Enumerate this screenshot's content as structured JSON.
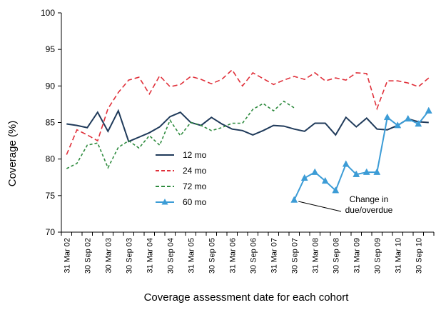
{
  "chart_data": {
    "type": "line",
    "xlabel": "Coverage assessment date for each cohort",
    "ylabel": "Coverage (%)",
    "ylim": [
      70,
      100
    ],
    "yticks": [
      70,
      75,
      80,
      85,
      90,
      95,
      100
    ],
    "grid": false,
    "legend_position": "center",
    "x_points": [
      "Mar 02",
      "Jun 02",
      "Sep 02",
      "Dec 02",
      "Mar 03",
      "Jun 03",
      "Sep 03",
      "Dec 03",
      "Mar 04",
      "Jun 04",
      "Sep 04",
      "Dec 04",
      "Mar 05",
      "Jun 05",
      "Sep 05",
      "Dec 05",
      "Mar 06",
      "Jun 06",
      "Sep 06",
      "Dec 06",
      "Mar 07",
      "Jun 07",
      "Sep 07",
      "Dec 07",
      "Mar 08",
      "Jun 08",
      "Sep 08",
      "Dec 08",
      "Mar 09",
      "Jun 09",
      "Sep 09",
      "Dec 09",
      "Mar 10",
      "Jun 10",
      "Sep 10",
      "Dec 10"
    ],
    "x_tick_labels": [
      "31 Mar 02",
      "30 Sep 02",
      "30 Mar 03",
      "30 Sep 03",
      "31 Mar 04",
      "30 Sep 04",
      "31 Mar 05",
      "30 Sep 05",
      "31 Mar 06",
      "30 Sep 06",
      "31 Mar 07",
      "30 Sep 07",
      "31 Mar 08",
      "30 Sep 08",
      "31 Mar 09",
      "30 Sep 09",
      "31 Mar 10",
      "30 Sep 10"
    ],
    "series": [
      {
        "name": "12 mo",
        "color": "#1f3a5a",
        "style": "solid",
        "marker": "none",
        "values": [
          84.8,
          84.6,
          84.3,
          86.4,
          83.8,
          86.6,
          82.4,
          83.0,
          83.6,
          84.4,
          85.8,
          86.4,
          85.0,
          84.6,
          85.7,
          84.8,
          84.1,
          83.9,
          83.3,
          83.9,
          84.6,
          84.5,
          84.1,
          83.8,
          84.9,
          84.9,
          83.3,
          85.7,
          84.4,
          85.6,
          84.1,
          84.0,
          84.6,
          85.5,
          85.1,
          85.0
        ]
      },
      {
        "name": "24 mo",
        "color": "#e0303a",
        "style": "dashed",
        "marker": "none",
        "values": [
          80.6,
          84.0,
          83.3,
          82.5,
          86.9,
          89.1,
          90.8,
          91.2,
          88.9,
          91.4,
          89.9,
          90.2,
          91.3,
          90.9,
          90.3,
          90.9,
          92.2,
          90.0,
          91.8,
          91.0,
          90.2,
          90.8,
          91.3,
          90.9,
          91.8,
          90.7,
          91.1,
          90.8,
          91.8,
          91.7,
          86.9,
          90.7,
          90.7,
          90.4,
          89.9,
          91.1
        ]
      },
      {
        "name": "72 mo",
        "color": "#2e8b3e",
        "style": "dashed",
        "marker": "none",
        "values": [
          78.7,
          79.4,
          81.9,
          82.2,
          78.8,
          81.6,
          82.5,
          81.5,
          83.2,
          81.9,
          85.3,
          83.2,
          85.0,
          84.6,
          83.9,
          84.3,
          84.9,
          84.9,
          86.8,
          87.6,
          86.6,
          87.9,
          87.0
        ]
      },
      {
        "name": "60 mo",
        "color": "#3c9cd6",
        "style": "solid",
        "marker": "triangle",
        "start_index": 22,
        "values": [
          74.4,
          77.4,
          78.2,
          77.0,
          75.7,
          79.3,
          77.9,
          78.2,
          78.2,
          85.7,
          84.6,
          85.5,
          84.8,
          86.6
        ]
      }
    ],
    "annotation": {
      "lines": [
        "Change in",
        "due/overdue"
      ]
    }
  }
}
